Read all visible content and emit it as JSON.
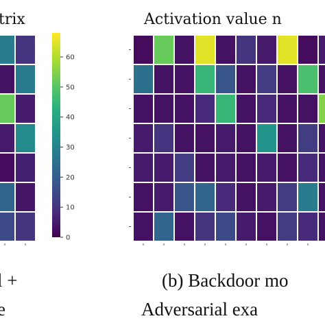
{
  "chart_data": [
    {
      "type": "heatmap",
      "title": "trix",
      "caption": [
        "l +",
        "e"
      ],
      "values": [
        [
          28,
          10
        ],
        [
          3,
          28
        ],
        [
          52,
          5
        ],
        [
          5,
          32
        ],
        [
          2,
          6
        ],
        [
          22,
          4
        ],
        [
          15,
          10
        ]
      ]
    },
    {
      "type": "heatmap",
      "title": "Activation value n",
      "caption": [
        "(b) Backdoor mo",
        "Adversarial exa"
      ],
      "values": [
        [
          2,
          52,
          3,
          65,
          3,
          10,
          5,
          65,
          2,
          5
        ],
        [
          25,
          3,
          3,
          45,
          18,
          3,
          12,
          3,
          48,
          3
        ],
        [
          3,
          3,
          3,
          8,
          45,
          3,
          8,
          3,
          3,
          55
        ],
        [
          5,
          10,
          3,
          3,
          5,
          3,
          35,
          3,
          12,
          3
        ],
        [
          5,
          5,
          12,
          3,
          5,
          3,
          5,
          3,
          8,
          3
        ],
        [
          3,
          5,
          18,
          22,
          8,
          3,
          5,
          12,
          28,
          3
        ],
        [
          3,
          22,
          3,
          10,
          15,
          5,
          3,
          12,
          8,
          3
        ]
      ]
    }
  ],
  "colorbar": {
    "ticks": [
      "0",
      "10",
      "20",
      "30",
      "40",
      "50",
      "60"
    ],
    "tick_values": [
      0,
      10,
      20,
      30,
      40,
      50,
      60
    ],
    "range": [
      0,
      68
    ],
    "colormap": "viridis"
  }
}
